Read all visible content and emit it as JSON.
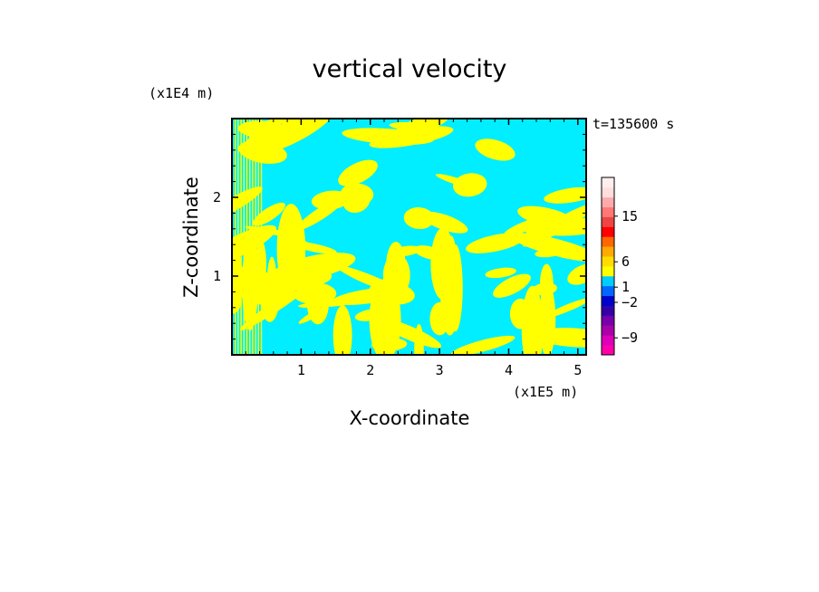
{
  "chart_data": {
    "type": "heatmap",
    "title": "vertical velocity",
    "xlabel": "X-coordinate",
    "ylabel": "Z-coordinate",
    "x_scale_label": "(x1E5 m)",
    "y_scale_label": "(x1E4 m)",
    "time_label": "t=135600 s",
    "xlim": [
      0.0,
      5.12
    ],
    "ylim": [
      0.0,
      3.0
    ],
    "x_ticks": [
      {
        "value": 1,
        "label": "1"
      },
      {
        "value": 2,
        "label": "2"
      },
      {
        "value": 3,
        "label": "3"
      },
      {
        "value": 4,
        "label": "4"
      },
      {
        "value": 5,
        "label": "5"
      }
    ],
    "y_ticks": [
      {
        "value": 1,
        "label": "1"
      },
      {
        "value": 2,
        "label": "2"
      }
    ],
    "colorbar": {
      "levels": [
        {
          "color": "#ff00aa"
        },
        {
          "color": "#dd00bb"
        },
        {
          "color": "#aa00aa"
        },
        {
          "color": "#7700aa"
        },
        {
          "color": "#3300aa"
        },
        {
          "color": "#0000cc"
        },
        {
          "color": "#0066ff"
        },
        {
          "color": "#00ccff"
        },
        {
          "color": "#ffff00"
        },
        {
          "color": "#ffdd00"
        },
        {
          "color": "#ffaa00"
        },
        {
          "color": "#ff6600"
        },
        {
          "color": "#ff0000"
        },
        {
          "color": "#ee4444"
        },
        {
          "color": "#ff7777"
        },
        {
          "color": "#ffaaaa"
        },
        {
          "color": "#ffdddd"
        },
        {
          "color": "#ffeeee"
        }
      ],
      "labels": [
        {
          "text": "15",
          "value": 15
        },
        {
          "text": "6",
          "value": 6
        },
        {
          "text": "1",
          "value": 1
        },
        {
          "text": "−2",
          "value": -2
        },
        {
          "text": "−9",
          "value": -9
        }
      ]
    },
    "field": {
      "negative_color": "#00eeff",
      "positive_color": "#ffff00"
    }
  }
}
